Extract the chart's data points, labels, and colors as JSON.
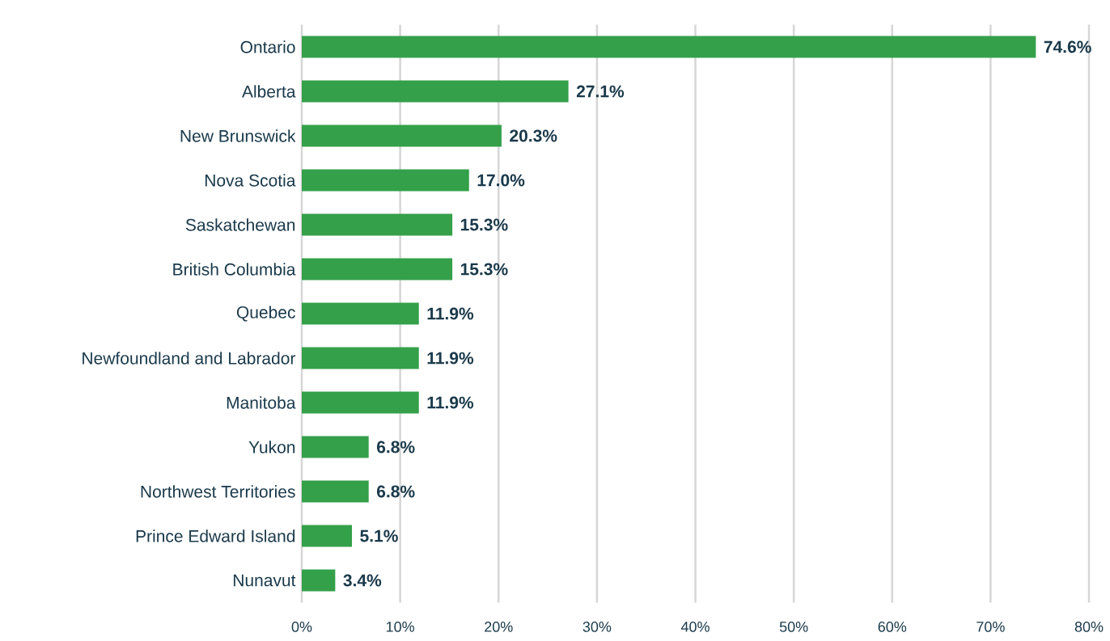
{
  "chart_data": {
    "type": "bar",
    "orientation": "horizontal",
    "categories": [
      "Ontario",
      "Alberta",
      "New Brunswick",
      "Nova Scotia",
      "Saskatchewan",
      "British Columbia",
      "Quebec",
      "Newfoundland and Labrador",
      "Manitoba",
      "Yukon",
      "Northwest Territories",
      "Prince Edward Island",
      "Nunavut"
    ],
    "values": [
      74.6,
      27.1,
      20.3,
      17.0,
      15.3,
      15.3,
      11.9,
      11.9,
      11.9,
      6.8,
      6.8,
      5.1,
      3.4
    ],
    "value_labels": [
      "74.6%",
      "27.1%",
      "20.3%",
      "17.0%",
      "15.3%",
      "15.3%",
      "11.9%",
      "11.9%",
      "11.9%",
      "6.8%",
      "6.8%",
      "5.1%",
      "3.4%"
    ],
    "color": "#34a04a",
    "xlim": [
      0,
      80
    ],
    "xticks": [
      {
        "value": 0,
        "label": "0%"
      },
      {
        "value": 10,
        "label": "10%"
      },
      {
        "value": 20,
        "label": "20%"
      },
      {
        "value": 30,
        "label": "30%"
      },
      {
        "value": 40,
        "label": "40%"
      },
      {
        "value": 50,
        "label": "50%"
      },
      {
        "value": 60,
        "label": "60%"
      },
      {
        "value": 70,
        "label": "70%"
      },
      {
        "value": 80,
        "label": "80%"
      }
    ],
    "grid": "x"
  }
}
